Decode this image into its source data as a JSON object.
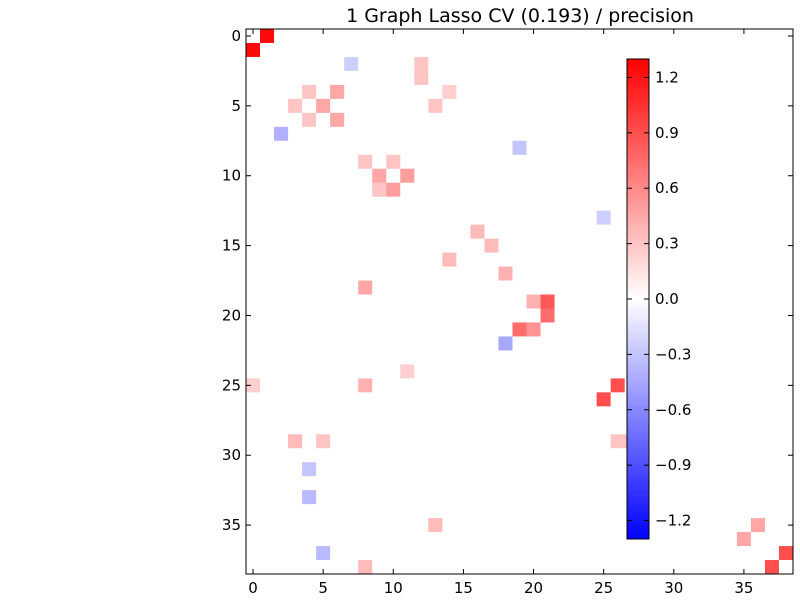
{
  "chart_data": {
    "type": "heatmap",
    "title": "1 Graph Lasso CV (0.193) / precision",
    "n": 39,
    "colormap": "bwr",
    "vlim": [
      -1.3,
      1.3
    ],
    "x_ticks": [
      0,
      5,
      10,
      15,
      20,
      25,
      30,
      35
    ],
    "y_ticks": [
      0,
      5,
      10,
      15,
      20,
      25,
      30,
      35
    ],
    "colorbar_ticks": [
      1.2,
      0.9,
      0.6,
      0.3,
      0.0,
      -0.3,
      -0.6,
      -0.9,
      -1.2
    ],
    "colorbar_tick_labels": [
      "1.2",
      "0.9",
      "0.6",
      "0.3",
      "0.0",
      "−0.3",
      "−0.6",
      "−0.9",
      "−1.2"
    ],
    "grid": false,
    "diagonal_value": 0.0,
    "cells": [
      [
        1,
        0,
        1.25
      ],
      [
        0,
        1,
        1.25
      ],
      [
        2,
        7,
        -0.25
      ],
      [
        4,
        4,
        0.3
      ],
      [
        4,
        6,
        0.45
      ],
      [
        5,
        3,
        0.3
      ],
      [
        5,
        5,
        0.45
      ],
      [
        6,
        4,
        0.3
      ],
      [
        6,
        6,
        0.45
      ],
      [
        7,
        2,
        -0.4
      ],
      [
        9,
        10,
        0.3
      ],
      [
        10,
        9,
        0.45
      ],
      [
        10,
        11,
        0.5
      ],
      [
        11,
        10,
        0.5
      ],
      [
        11,
        9,
        0.3
      ],
      [
        15,
        17,
        0.35
      ],
      [
        16,
        14,
        0.35
      ],
      [
        18,
        8,
        0.45
      ],
      [
        17,
        18,
        0.4
      ],
      [
        19,
        20,
        0.4
      ],
      [
        19,
        21,
        0.85
      ],
      [
        20,
        21,
        0.75
      ],
      [
        21,
        19,
        0.75
      ],
      [
        21,
        20,
        0.55
      ],
      [
        22,
        18,
        -0.45
      ],
      [
        25,
        26,
        0.9
      ],
      [
        26,
        25,
        0.9
      ],
      [
        29,
        26,
        0.3
      ],
      [
        29,
        27,
        0.3
      ],
      [
        37,
        38,
        0.9
      ],
      [
        38,
        37,
        0.9
      ],
      [
        36,
        35,
        0.45
      ],
      [
        35,
        36,
        0.45
      ],
      [
        25,
        0,
        0.25
      ],
      [
        25,
        8,
        0.4
      ],
      [
        29,
        3,
        0.35
      ],
      [
        29,
        5,
        0.3
      ],
      [
        33,
        4,
        -0.35
      ],
      [
        37,
        5,
        -0.35
      ],
      [
        31,
        4,
        -0.3
      ],
      [
        35,
        13,
        0.35
      ],
      [
        38,
        8,
        0.35
      ],
      [
        24,
        11,
        0.25
      ],
      [
        14,
        16,
        0.35
      ],
      [
        13,
        25,
        -0.25
      ],
      [
        8,
        19,
        -0.3
      ],
      [
        9,
        8,
        0.3
      ],
      [
        2,
        12,
        0.3
      ],
      [
        3,
        12,
        0.3
      ],
      [
        4,
        14,
        0.25
      ],
      [
        5,
        13,
        0.3
      ]
    ]
  }
}
